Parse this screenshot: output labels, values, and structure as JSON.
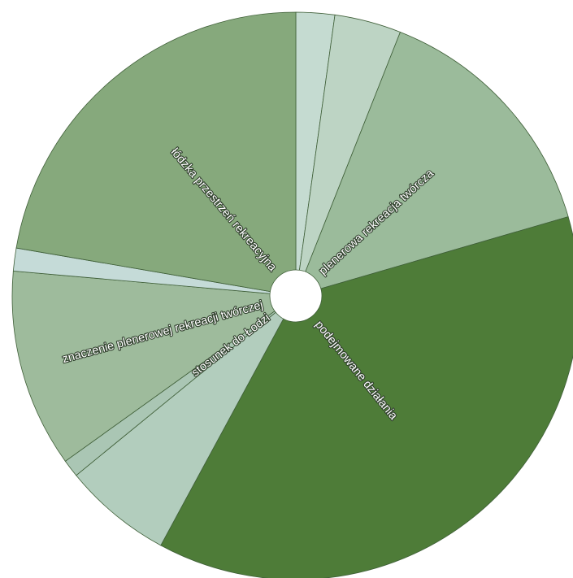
{
  "chart_data": {
    "type": "pie",
    "variant": "sunburst",
    "start_angle_deg": 0,
    "direction": "clockwise",
    "slices": [
      {
        "label": "",
        "value": 2.2,
        "color": "#c5dbd1"
      },
      {
        "label": "",
        "value": 3.8,
        "color": "#bdd4c4"
      },
      {
        "label": "plenerowa rekreacja twórcza",
        "value": 14.5,
        "color": "#9bbb9b"
      },
      {
        "label": "podejmowane działania",
        "value": 37.4,
        "color": "#4e7c38"
      },
      {
        "label": "",
        "value": 6.2,
        "color": "#b2cdbd"
      },
      {
        "label": "stosunek do Łodzi",
        "value": 1.0,
        "color": "#aac6b4"
      },
      {
        "label": "znaczenie plenerowej rekreacji twórczej",
        "value": 11.3,
        "color": "#9ebb9c"
      },
      {
        "label": "",
        "value": 1.3,
        "color": "#c5dbd8"
      },
      {
        "label": "łódzka przestrzeń rekreacyjna",
        "value": 22.3,
        "color": "#86a97c"
      }
    ]
  }
}
